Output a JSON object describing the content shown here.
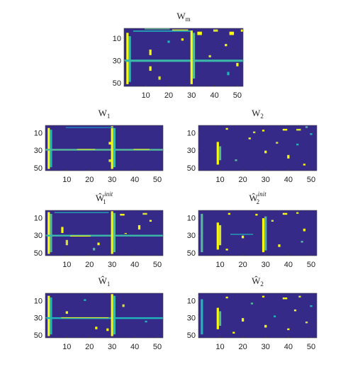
{
  "chart_data": [
    {
      "type": "heatmap",
      "title": {
        "base": "W",
        "sub": "m"
      },
      "xlim": [
        0.5,
        52.5
      ],
      "ylim": [
        0.5,
        52.5
      ],
      "xticks": [
        10,
        20,
        30,
        40,
        50
      ],
      "yticks": [
        10,
        30,
        50
      ],
      "clim": [
        0,
        1
      ],
      "colormap": [
        "#352a87",
        "#0f5cdd",
        "#1fb5b9",
        "#a5be6a",
        "#f9fb0e"
      ],
      "blocks": [
        [
          1,
          52,
          1,
          52,
          0
        ],
        [
          5,
          50,
          2,
          2,
          1
        ],
        [
          8,
          48,
          3,
          3,
          0.55
        ],
        [
          3,
          3,
          5,
          30,
          0.5
        ],
        [
          1,
          1,
          10,
          20,
          0.6
        ],
        [
          2,
          2,
          22,
          28,
          0.9
        ],
        [
          29,
          30,
          1,
          52,
          0.55
        ],
        [
          3,
          50,
          30,
          30,
          1
        ],
        [
          5,
          45,
          31,
          31,
          0.6
        ],
        [
          20,
          24,
          12,
          12,
          1
        ],
        [
          35,
          38,
          12,
          12,
          1
        ],
        [
          4,
          6,
          33,
          34,
          1
        ],
        [
          4,
          6,
          47,
          48,
          1
        ],
        [
          2,
          3,
          40,
          41,
          0.9
        ],
        [
          2,
          3,
          52,
          52,
          1
        ],
        [
          15,
          16,
          45,
          45,
          1
        ],
        [
          40,
          42,
          46,
          46,
          0.5
        ],
        [
          32,
          34,
          50,
          50,
          1
        ],
        [
          12,
          13,
          20,
          20,
          0.5
        ],
        [
          44,
          46,
          16,
          16,
          0.9
        ],
        [
          25,
          26,
          38,
          38,
          0.9
        ],
        [
          10,
          11,
          26,
          26,
          1
        ]
      ]
    },
    {
      "type": "heatmap",
      "title": {
        "base": "W",
        "sub": "1"
      },
      "xlim": [
        0.5,
        52.5
      ],
      "ylim": [
        0.5,
        52.5
      ],
      "xticks": [
        10,
        20,
        30,
        40,
        50
      ],
      "yticks": [
        10,
        30,
        50
      ],
      "clim": [
        0,
        1
      ],
      "colormap": [
        "#352a87",
        "#0f5cdd",
        "#1fb5b9",
        "#a5be6a",
        "#f9fb0e"
      ],
      "blocks": [
        [
          1,
          52,
          1,
          52,
          0
        ],
        [
          4,
          50,
          2,
          2,
          1
        ],
        [
          6,
          48,
          3,
          3,
          0.5
        ],
        [
          28,
          29,
          1,
          52,
          0.6
        ],
        [
          2,
          50,
          30,
          30,
          1
        ],
        [
          4,
          48,
          31,
          31,
          0.55
        ],
        [
          3,
          3,
          10,
          30,
          0.4
        ],
        [
          28,
          28,
          15,
          22,
          0.9
        ],
        [
          28,
          28,
          40,
          46,
          0.9
        ],
        [
          20,
          22,
          29,
          29,
          1
        ],
        [
          40,
          42,
          29,
          29,
          0.9
        ]
      ]
    },
    {
      "type": "heatmap",
      "title": {
        "base": "W",
        "sub": "2"
      },
      "xlim": [
        0.5,
        52.5
      ],
      "ylim": [
        0.5,
        52.5
      ],
      "xticks": [
        10,
        20,
        30,
        40,
        50
      ],
      "yticks": [
        10,
        30,
        50
      ],
      "clim": [
        0,
        1
      ],
      "colormap": [
        "#352a87",
        "#0f5cdd",
        "#1fb5b9",
        "#a5be6a",
        "#f9fb0e"
      ],
      "blocks": [
        [
          1,
          52,
          1,
          52,
          0
        ],
        [
          20,
          45,
          9,
          9,
          1
        ],
        [
          25,
          40,
          10,
          10,
          0.6
        ],
        [
          4,
          5,
          13,
          13,
          1
        ],
        [
          6,
          7,
          29,
          29,
          1
        ],
        [
          5,
          6,
          38,
          39,
          1
        ],
        [
          5,
          6,
          44,
          45,
          0.9
        ],
        [
          2,
          3,
          48,
          48,
          0.6
        ],
        [
          30,
          32,
          30,
          30,
          1
        ],
        [
          35,
          38,
          40,
          40,
          1
        ],
        [
          15,
          16,
          23,
          23,
          1
        ],
        [
          40,
          41,
          17,
          17,
          0.6
        ],
        [
          20,
          21,
          35,
          35,
          0.9
        ],
        [
          45,
          46,
          47,
          47,
          1
        ],
        [
          10,
          11,
          50,
          50,
          0.5
        ],
        [
          22,
          23,
          44,
          44,
          0.5
        ],
        [
          8,
          9,
          25,
          25,
          0.9
        ]
      ]
    },
    {
      "type": "heatmap",
      "title": {
        "base": "Ŵ",
        "sub": "1",
        "sup": "init"
      },
      "xlim": [
        0.5,
        52.5
      ],
      "ylim": [
        0.5,
        52.5
      ],
      "xticks": [
        10,
        20,
        30,
        40,
        50
      ],
      "yticks": [
        10,
        30,
        50
      ],
      "clim": [
        0,
        1
      ],
      "colormap": [
        "#352a87",
        "#0f5cdd",
        "#1fb5b9",
        "#a5be6a",
        "#f9fb0e"
      ],
      "blocks": [
        [
          1,
          52,
          1,
          52,
          0
        ],
        [
          3,
          50,
          2,
          2,
          1
        ],
        [
          5,
          48,
          3,
          3,
          0.6
        ],
        [
          29,
          30,
          1,
          52,
          0.55
        ],
        [
          2,
          50,
          30,
          30,
          1
        ],
        [
          4,
          48,
          31,
          31,
          0.6
        ],
        [
          20,
          26,
          8,
          8,
          1
        ],
        [
          35,
          40,
          10,
          10,
          0.9
        ],
        [
          3,
          3,
          5,
          28,
          0.5
        ],
        [
          5,
          6,
          34,
          35,
          1
        ],
        [
          4,
          5,
          44,
          45,
          0.9
        ],
        [
          18,
          22,
          42,
          42,
          1
        ],
        [
          38,
          40,
          24,
          24,
          1
        ],
        [
          12,
          13,
          47,
          47,
          1
        ],
        [
          27,
          27,
          36,
          36,
          1
        ],
        [
          44,
          46,
          22,
          22,
          0.6
        ],
        [
          30,
          30,
          12,
          20,
          1
        ]
      ]
    },
    {
      "type": "heatmap",
      "title": {
        "base": "Ŵ",
        "sub": "2",
        "sup": "init"
      },
      "xlim": [
        0.5,
        52.5
      ],
      "ylim": [
        0.5,
        52.5
      ],
      "xticks": [
        10,
        20,
        30,
        40,
        50
      ],
      "yticks": [
        10,
        30,
        50
      ],
      "clim": [
        0,
        1
      ],
      "colormap": [
        "#352a87",
        "#0f5cdd",
        "#1fb5b9",
        "#a5be6a",
        "#f9fb0e"
      ],
      "blocks": [
        [
          1,
          52,
          1,
          52,
          0
        ],
        [
          5,
          48,
          2,
          2,
          0.6
        ],
        [
          15,
          45,
          9,
          9,
          1
        ],
        [
          18,
          40,
          10,
          10,
          0.9
        ],
        [
          10,
          48,
          29,
          29,
          1
        ],
        [
          8,
          46,
          30,
          30,
          0.6
        ],
        [
          4,
          5,
          14,
          14,
          1
        ],
        [
          5,
          6,
          26,
          26,
          1
        ],
        [
          4,
          5,
          38,
          39,
          1
        ],
        [
          3,
          4,
          44,
          44,
          0.9
        ],
        [
          30,
          32,
          20,
          20,
          1
        ],
        [
          40,
          42,
          36,
          36,
          1
        ],
        [
          22,
          24,
          47,
          47,
          1
        ],
        [
          28,
          28,
          15,
          24,
          0.5
        ],
        [
          12,
          13,
          33,
          33,
          0.9
        ],
        [
          45,
          46,
          13,
          13,
          1
        ],
        [
          36,
          37,
          46,
          46,
          0.6
        ]
      ]
    },
    {
      "type": "heatmap",
      "title": {
        "base": "Ŵ",
        "sub": "1"
      },
      "xlim": [
        0.5,
        52.5
      ],
      "ylim": [
        0.5,
        52.5
      ],
      "xticks": [
        10,
        20,
        30,
        40,
        50
      ],
      "yticks": [
        10,
        30,
        50
      ],
      "clim": [
        0,
        1
      ],
      "colormap": [
        "#352a87",
        "#0f5cdd",
        "#1fb5b9",
        "#a5be6a",
        "#f9fb0e"
      ],
      "blocks": [
        [
          1,
          52,
          1,
          52,
          0
        ],
        [
          4,
          50,
          2,
          2,
          1
        ],
        [
          6,
          48,
          3,
          3,
          0.5
        ],
        [
          29,
          30,
          1,
          52,
          0.5
        ],
        [
          2,
          50,
          30,
          30,
          1
        ],
        [
          4,
          48,
          31,
          31,
          0.55
        ],
        [
          29,
          29,
          8,
          28,
          0.9
        ],
        [
          22,
          24,
          10,
          10,
          1
        ],
        [
          40,
          42,
          23,
          23,
          1
        ],
        [
          14,
          16,
          35,
          35,
          0.9
        ],
        [
          33,
          34,
          45,
          45,
          0.5
        ],
        [
          42,
          44,
          28,
          28,
          1
        ],
        [
          8,
          9,
          18,
          18,
          0.5
        ]
      ]
    },
    {
      "type": "heatmap",
      "title": {
        "base": "Ŵ",
        "sub": "2"
      },
      "xlim": [
        0.5,
        52.5
      ],
      "ylim": [
        0.5,
        52.5
      ],
      "xticks": [
        10,
        20,
        30,
        40,
        50
      ],
      "yticks": [
        10,
        30,
        50
      ],
      "clim": [
        0,
        1
      ],
      "colormap": [
        "#352a87",
        "#0f5cdd",
        "#1fb5b9",
        "#a5be6a",
        "#f9fb0e"
      ],
      "blocks": [
        [
          1,
          52,
          1,
          52,
          0
        ],
        [
          8,
          48,
          2,
          2,
          0.5
        ],
        [
          18,
          42,
          9,
          9,
          1
        ],
        [
          22,
          38,
          10,
          10,
          0.6
        ],
        [
          5,
          6,
          13,
          13,
          1
        ],
        [
          4,
          5,
          29,
          29,
          1
        ],
        [
          6,
          7,
          38,
          39,
          1
        ],
        [
          4,
          5,
          45,
          45,
          0.9
        ],
        [
          30,
          33,
          20,
          20,
          1
        ],
        [
          38,
          40,
          30,
          30,
          1
        ],
        [
          20,
          21,
          43,
          43,
          1
        ],
        [
          46,
          47,
          16,
          16,
          1
        ],
        [
          12,
          13,
          24,
          24,
          0.6
        ],
        [
          34,
          35,
          48,
          48,
          0.9
        ],
        [
          27,
          28,
          34,
          34,
          0.5
        ],
        [
          42,
          43,
          40,
          40,
          1
        ],
        [
          15,
          16,
          50,
          50,
          0.5
        ]
      ]
    }
  ]
}
